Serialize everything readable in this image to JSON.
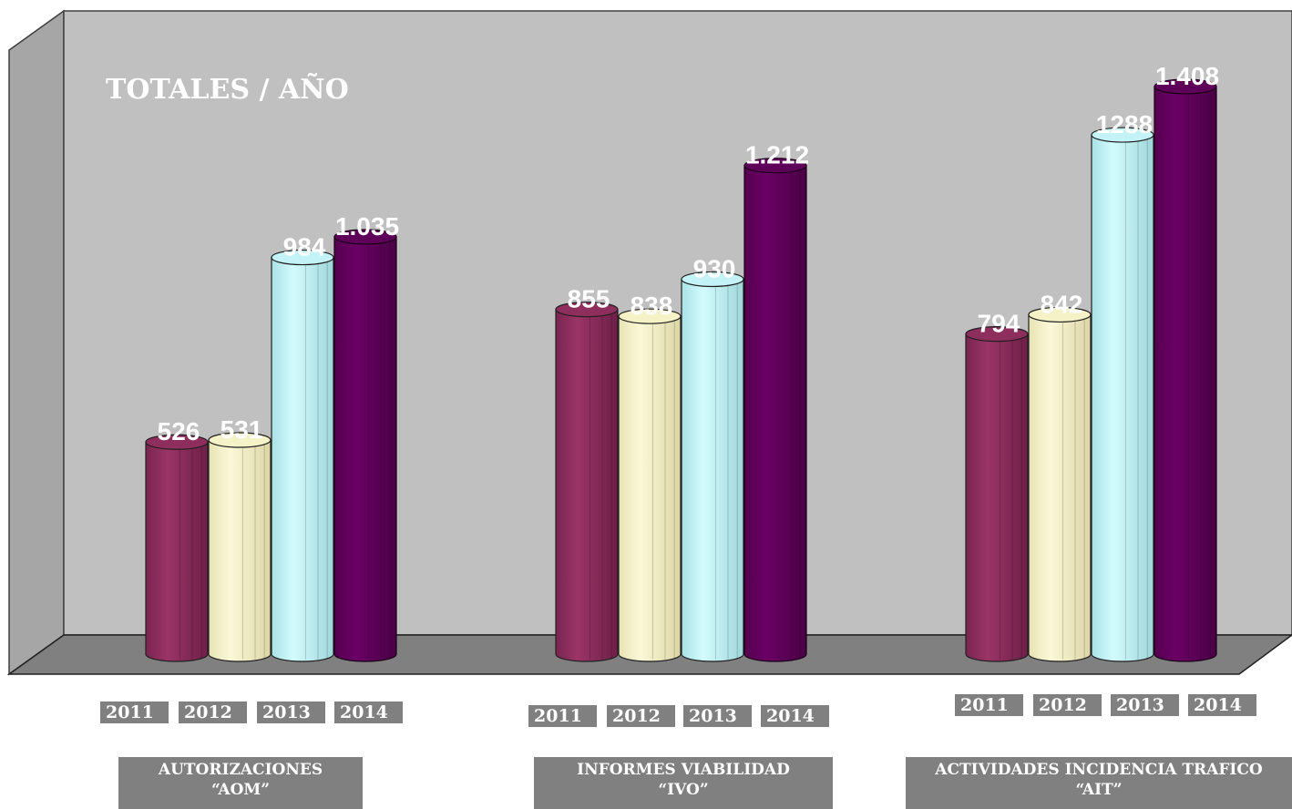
{
  "chart_data": {
    "type": "bar",
    "title": "TOTALES / AÑO",
    "ylim": [
      0,
      1600
    ],
    "grid": false,
    "legend": "none",
    "series_names": [
      "2011",
      "2012",
      "2013",
      "2014"
    ],
    "series_colors": [
      "#8e2e5c",
      "#f6f2c7",
      "#c3f3f6",
      "#5e0059"
    ],
    "groups": [
      {
        "name_line1": "AUTORIZACIONES",
        "name_line2": "“AOM”",
        "years": [
          "2011",
          "2012",
          "2013",
          "2014"
        ],
        "values": [
          526,
          531,
          984,
          1035
        ],
        "labels": [
          "526",
          "531",
          "984",
          "1.035"
        ]
      },
      {
        "name_line1": "INFORMES VIABILIDAD",
        "name_line2": "“IVO”",
        "years": [
          "2011",
          "2012",
          "2013",
          "2014"
        ],
        "values": [
          855,
          838,
          930,
          1212
        ],
        "labels": [
          "855",
          "838",
          "930",
          "1.212"
        ]
      },
      {
        "name_line1": "ACTIVIDADES INCIDENCIA TRAFICO",
        "name_line2": "“AIT”",
        "years": [
          "2011",
          "2012",
          "2013",
          "2014"
        ],
        "values": [
          794,
          842,
          1288,
          1408
        ],
        "labels": [
          "794",
          "842",
          "1288",
          "1.408"
        ]
      }
    ]
  }
}
